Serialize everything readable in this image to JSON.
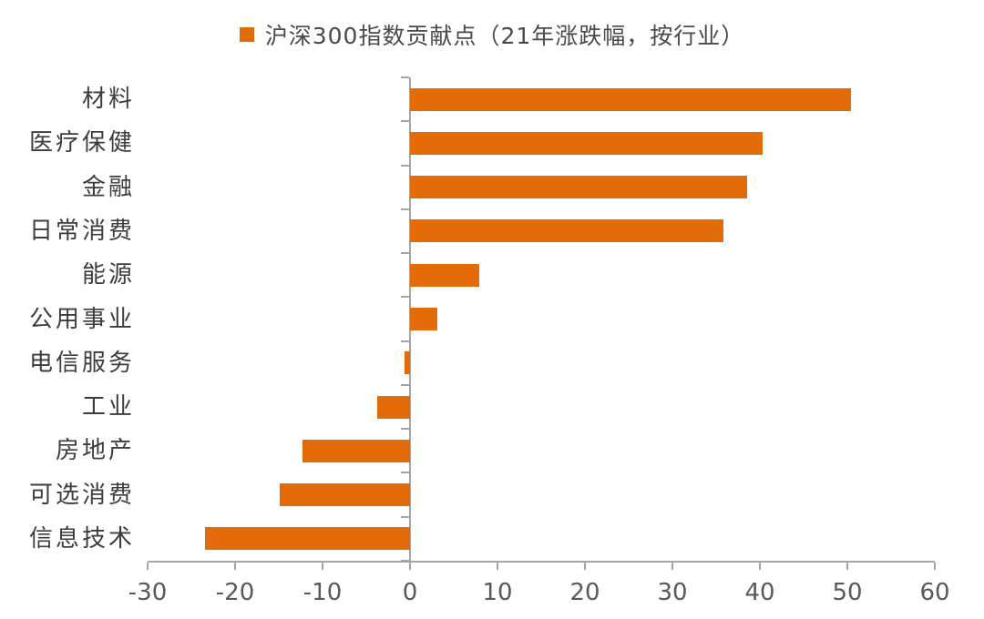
{
  "legend": {
    "label": "沪深300指数贡献点（21年涨跌幅，按行业）",
    "marker_color": "#e36c09"
  },
  "chart_data": {
    "type": "bar",
    "orientation": "horizontal",
    "title": "沪深300指数贡献点（21年涨跌幅，按行业）",
    "categories": [
      "材料",
      "医疗保健",
      "金融",
      "日常消费",
      "能源",
      "公用事业",
      "电信服务",
      "工业",
      "房地产",
      "可选消费",
      "信息技术"
    ],
    "values": [
      50.4,
      40.3,
      38.5,
      35.8,
      7.9,
      3.1,
      -0.6,
      -3.7,
      -12.3,
      -14.9,
      -23.4
    ],
    "xlabel": "",
    "ylabel": "",
    "xlim": [
      -30,
      60
    ],
    "xticks": [
      -30,
      -20,
      -10,
      0,
      10,
      20,
      30,
      40,
      50,
      60
    ],
    "xtick_labels": [
      "-30",
      "-20",
      "-10",
      "0",
      "10",
      "20",
      "30",
      "40",
      "50",
      "60"
    ],
    "grid": false,
    "legend_position": "top-center",
    "bar_color": "#e36c09",
    "axis_color": "#a6a6a6",
    "tick_label_color": "#595959",
    "category_label_color": "#3d3d3d"
  }
}
